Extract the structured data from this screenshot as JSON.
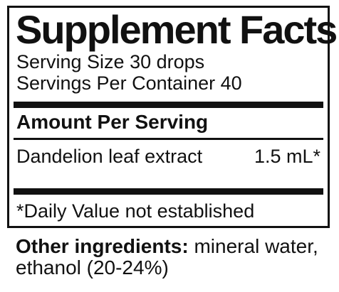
{
  "label": {
    "title": "Supplement Facts",
    "serving_size": "Serving Size 30 drops",
    "servings_per_container": "Servings Per Container 40",
    "amount_header": "Amount Per Serving",
    "ingredients": [
      {
        "name": "Dandelion leaf extract",
        "amount": "1.5 mL*"
      }
    ],
    "footnote": "*Daily Value not established"
  },
  "other_ingredients": {
    "label": "Other ingredients:",
    "text": " mineral water, ethanol (20-24%)"
  }
}
